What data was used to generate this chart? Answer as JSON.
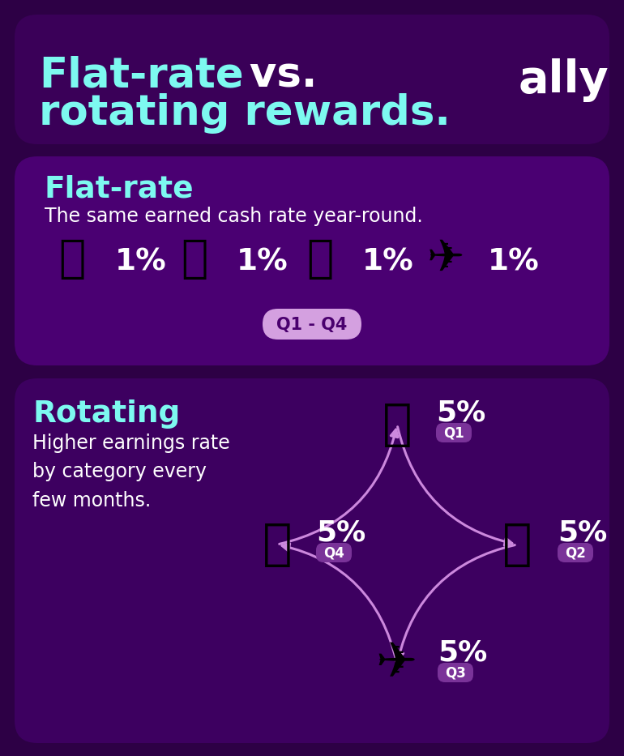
{
  "bg_color": "#2d0045",
  "header_card_color": "#3a0058",
  "flat_card_color": "#4a0072",
  "rotate_card_color": "#3d0060",
  "title_cyan": "#7df9f0",
  "title_white": "#ffffff",
  "flat_rate_title": "Flat-rate",
  "flat_rate_subtitle": "The same earned cash rate year-round.",
  "flat_rate_percent": "1%",
  "flat_rate_badge": "Q1 - Q4",
  "rotating_title": "Rotating",
  "rotating_subtitle": "Higher earnings rate\nby category every\nfew months.",
  "rotating_percent": "5%",
  "main_title_cyan": "Flat-rate",
  "main_title_white": " vs.",
  "main_title_line2": "rotating rewards.",
  "ally_text": "ally",
  "q_labels": [
    "Q1",
    "Q2",
    "Q3",
    "Q4"
  ],
  "arrow_color": "#cc88dd",
  "badge_bg": "#d4a0e0",
  "badge_text": "#4a006e",
  "q_badge_bg": "#7a3399"
}
